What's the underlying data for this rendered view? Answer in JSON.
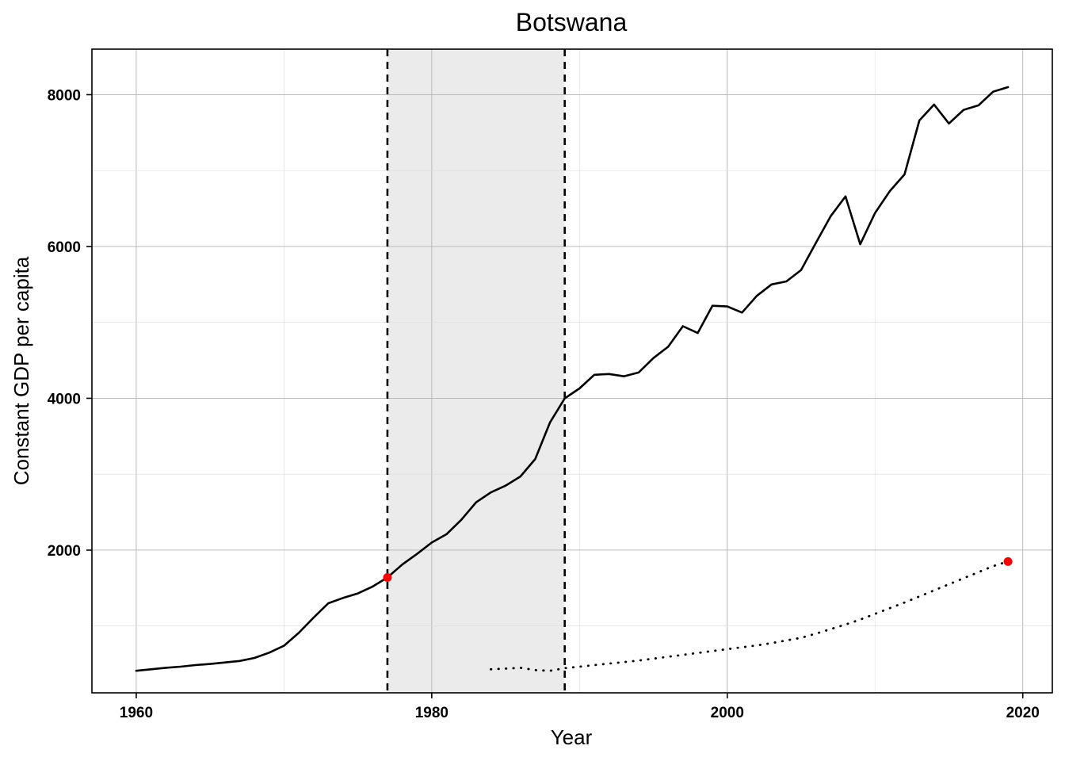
{
  "chart_data": {
    "type": "line",
    "title": "Botswana",
    "xlabel": "Year",
    "ylabel": "Constant GDP per capita",
    "xlim": [
      1957,
      2022
    ],
    "ylim": [
      120,
      8600
    ],
    "x_ticks": [
      1960,
      1980,
      2000,
      2020
    ],
    "y_ticks": [
      2000,
      4000,
      6000,
      8000
    ],
    "x_tick_labels": [
      "1960",
      "1980",
      "2000",
      "2020"
    ],
    "y_tick_labels": [
      "2000",
      "4000",
      "6000",
      "8000"
    ],
    "grid": true,
    "legend": "none",
    "shaded_period": [
      1977,
      1989
    ],
    "vertical_lines": [
      1977,
      1989
    ],
    "series": [
      {
        "style": "solid",
        "color": "#000000",
        "x": [
          1960,
          1961,
          1962,
          1963,
          1964,
          1965,
          1966,
          1967,
          1968,
          1969,
          1970,
          1971,
          1972,
          1973,
          1974,
          1975,
          1976,
          1977,
          1978,
          1979,
          1980,
          1981,
          1982,
          1983,
          1984,
          1985,
          1986,
          1987,
          1988,
          1989,
          1990,
          1991,
          1992,
          1993,
          1994,
          1995,
          1996,
          1997,
          1998,
          1999,
          2000,
          2001,
          2002,
          2003,
          2004,
          2005,
          2006,
          2007,
          2008,
          2009,
          2010,
          2011,
          2012,
          2013,
          2014,
          2015,
          2016,
          2017,
          2018,
          2019
        ],
        "y": [
          410,
          430,
          450,
          465,
          485,
          500,
          520,
          540,
          580,
          650,
          740,
          910,
          1110,
          1300,
          1370,
          1430,
          1520,
          1640,
          1810,
          1950,
          2100,
          2210,
          2400,
          2630,
          2760,
          2850,
          2970,
          3200,
          3680,
          4000,
          4130,
          4310,
          4320,
          4290,
          4340,
          4530,
          4680,
          4950,
          4860,
          5220,
          5210,
          5130,
          5350,
          5500,
          5540,
          5690,
          6050,
          6400,
          6660,
          6030,
          6440,
          6730,
          6950,
          7660,
          7870,
          7620,
          7800,
          7860,
          8040,
          8100
        ]
      },
      {
        "style": "dotted",
        "color": "#000000",
        "x": [
          1984,
          1985,
          1986,
          1987,
          1988,
          1989,
          1990,
          1991,
          1992,
          1993,
          1994,
          1995,
          1996,
          1997,
          1998,
          1999,
          2000,
          2001,
          2002,
          2003,
          2004,
          2005,
          2006,
          2007,
          2008,
          2009,
          2010,
          2011,
          2012,
          2013,
          2014,
          2015,
          2016,
          2017,
          2018,
          2019
        ],
        "y": [
          430,
          440,
          450,
          420,
          410,
          445,
          465,
          485,
          505,
          525,
          545,
          570,
          595,
          620,
          645,
          670,
          695,
          720,
          745,
          775,
          810,
          845,
          900,
          960,
          1020,
          1085,
          1160,
          1235,
          1310,
          1390,
          1470,
          1550,
          1630,
          1710,
          1790,
          1850
        ]
      }
    ],
    "highlight_points": [
      {
        "x": 1977,
        "y": 1640,
        "color": "#ff0000"
      },
      {
        "x": 2019,
        "y": 1850,
        "color": "#ff0000"
      }
    ]
  }
}
